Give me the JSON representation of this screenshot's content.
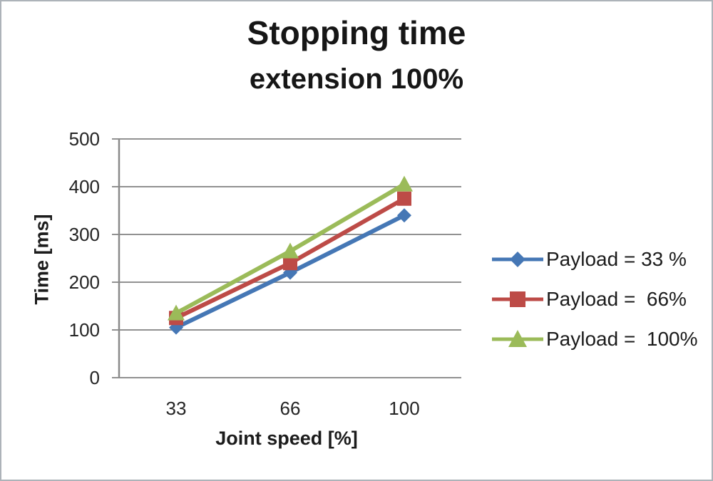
{
  "title": "Stopping time",
  "subtitle": "extension 100%",
  "chart_data": {
    "type": "line",
    "title": "Stopping time extension 100%",
    "xlabel": "Joint speed [%]",
    "ylabel": "Time [ms]",
    "categories": [
      "33",
      "66",
      "100"
    ],
    "ylim": [
      0,
      500
    ],
    "ytick_step": 100,
    "grid": true,
    "legend_position": "right",
    "series": [
      {
        "name": "Payload = 33 %",
        "marker": "diamond",
        "color": "#4577b5",
        "values": [
          105,
          220,
          340
        ]
      },
      {
        "name": "Payload =  66%",
        "marker": "square",
        "color": "#bd4b47",
        "values": [
          125,
          240,
          375
        ]
      },
      {
        "name": "Payload =  100%",
        "marker": "triangle",
        "color": "#9bbb59",
        "values": [
          135,
          265,
          405
        ]
      }
    ]
  },
  "style": {
    "grid_color": "#919191",
    "axis_color": "#8a8a8a",
    "tick_text_color": "#242424",
    "frame_border_color": "#adb3b9",
    "background": "#ffffff"
  }
}
